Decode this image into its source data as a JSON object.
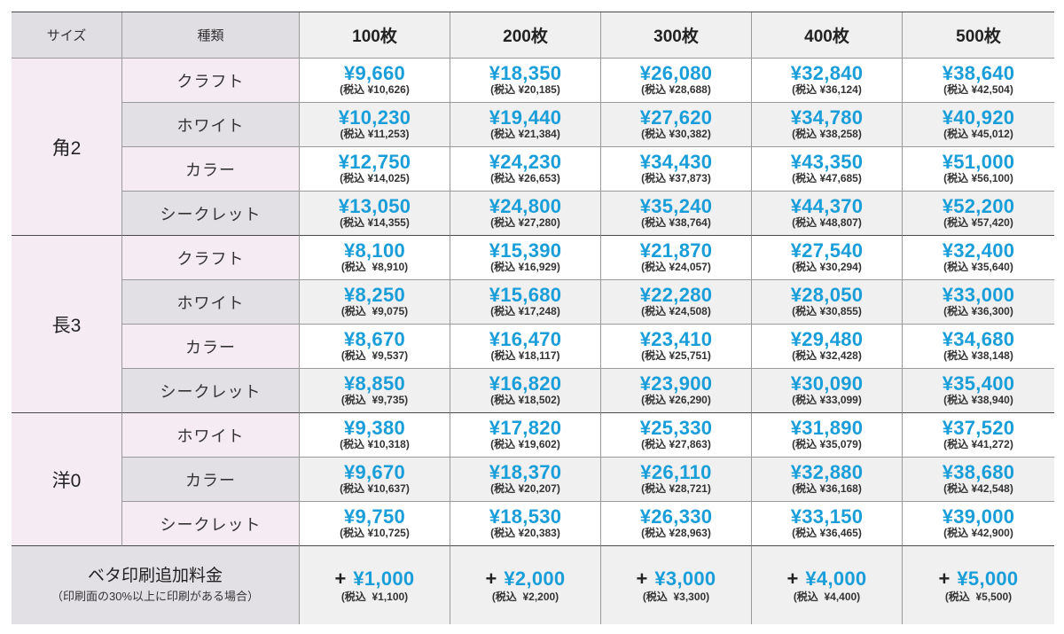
{
  "header": {
    "size_label": "サイズ",
    "type_label": "種類",
    "quantities": [
      "100枚",
      "200枚",
      "300枚",
      "400枚",
      "500枚"
    ]
  },
  "groups": [
    {
      "size": "角2",
      "rows": [
        {
          "type": "クラフト",
          "prices": [
            "¥9,660",
            "¥18,350",
            "¥26,080",
            "¥32,840",
            "¥38,640"
          ],
          "tax": [
            "(税込 ¥10,626)",
            "(税込 ¥20,185)",
            "(税込 ¥28,688)",
            "(税込 ¥36,124)",
            "(税込 ¥42,504)"
          ]
        },
        {
          "type": "ホワイト",
          "prices": [
            "¥10,230",
            "¥19,440",
            "¥27,620",
            "¥34,780",
            "¥40,920"
          ],
          "tax": [
            "(税込 ¥11,253)",
            "(税込 ¥21,384)",
            "(税込 ¥30,382)",
            "(税込 ¥38,258)",
            "(税込 ¥45,012)"
          ]
        },
        {
          "type": "カラー",
          "prices": [
            "¥12,750",
            "¥24,230",
            "¥34,430",
            "¥43,350",
            "¥51,000"
          ],
          "tax": [
            "(税込 ¥14,025)",
            "(税込 ¥26,653)",
            "(税込 ¥37,873)",
            "(税込 ¥47,685)",
            "(税込 ¥56,100)"
          ]
        },
        {
          "type": "シークレット",
          "prices": [
            "¥13,050",
            "¥24,800",
            "¥35,240",
            "¥44,370",
            "¥52,200"
          ],
          "tax": [
            "(税込 ¥14,355)",
            "(税込 ¥27,280)",
            "(税込 ¥38,764)",
            "(税込 ¥48,807)",
            "(税込 ¥57,420)"
          ]
        }
      ]
    },
    {
      "size": "長3",
      "rows": [
        {
          "type": "クラフト",
          "prices": [
            "¥8,100",
            "¥15,390",
            "¥21,870",
            "¥27,540",
            "¥32,400"
          ],
          "tax": [
            "(税込  ¥8,910)",
            "(税込 ¥16,929)",
            "(税込 ¥24,057)",
            "(税込 ¥30,294)",
            "(税込 ¥35,640)"
          ]
        },
        {
          "type": "ホワイト",
          "prices": [
            "¥8,250",
            "¥15,680",
            "¥22,280",
            "¥28,050",
            "¥33,000"
          ],
          "tax": [
            "(税込  ¥9,075)",
            "(税込 ¥17,248)",
            "(税込 ¥24,508)",
            "(税込 ¥30,855)",
            "(税込 ¥36,300)"
          ]
        },
        {
          "type": "カラー",
          "prices": [
            "¥8,670",
            "¥16,470",
            "¥23,410",
            "¥29,480",
            "¥34,680"
          ],
          "tax": [
            "(税込  ¥9,537)",
            "(税込 ¥18,117)",
            "(税込 ¥25,751)",
            "(税込 ¥32,428)",
            "(税込 ¥38,148)"
          ]
        },
        {
          "type": "シークレット",
          "prices": [
            "¥8,850",
            "¥16,820",
            "¥23,900",
            "¥30,090",
            "¥35,400"
          ],
          "tax": [
            "(税込  ¥9,735)",
            "(税込 ¥18,502)",
            "(税込 ¥26,290)",
            "(税込 ¥33,099)",
            "(税込 ¥38,940)"
          ]
        }
      ]
    },
    {
      "size": "洋0",
      "rows": [
        {
          "type": "ホワイト",
          "prices": [
            "¥9,380",
            "¥17,820",
            "¥25,330",
            "¥31,890",
            "¥37,520"
          ],
          "tax": [
            "(税込 ¥10,318)",
            "(税込 ¥19,602)",
            "(税込 ¥27,863)",
            "(税込 ¥35,079)",
            "(税込 ¥41,272)"
          ]
        },
        {
          "type": "カラー",
          "prices": [
            "¥9,670",
            "¥18,370",
            "¥26,110",
            "¥32,880",
            "¥38,680"
          ],
          "tax": [
            "(税込 ¥10,637)",
            "(税込 ¥20,207)",
            "(税込 ¥28,721)",
            "(税込 ¥36,168)",
            "(税込 ¥42,548)"
          ]
        },
        {
          "type": "シークレット",
          "prices": [
            "¥9,750",
            "¥18,530",
            "¥26,330",
            "¥33,150",
            "¥39,000"
          ],
          "tax": [
            "(税込 ¥10,725)",
            "(税込 ¥20,383)",
            "(税込 ¥28,963)",
            "(税込 ¥36,465)",
            "(税込 ¥42,900)"
          ]
        }
      ]
    }
  ],
  "beta": {
    "title": "ベタ印刷追加料金",
    "note": "（印刷面の30%以上に印刷がある場合）",
    "plus": "+",
    "prices": [
      "¥1,000",
      "¥2,000",
      "¥3,000",
      "¥4,000",
      "¥5,000"
    ],
    "tax": [
      "(税込  ¥1,100)",
      "(税込  ¥2,200)",
      "(税込  ¥3,300)",
      "(税込  ¥4,400)",
      "(税込  ¥5,500)"
    ]
  },
  "colors": {
    "price_blue": "#1a9ed9",
    "pink_bg": "#f5ebf3",
    "gray_bg": "#e3e0e5",
    "light_gray_bg": "#f0f0f0"
  }
}
